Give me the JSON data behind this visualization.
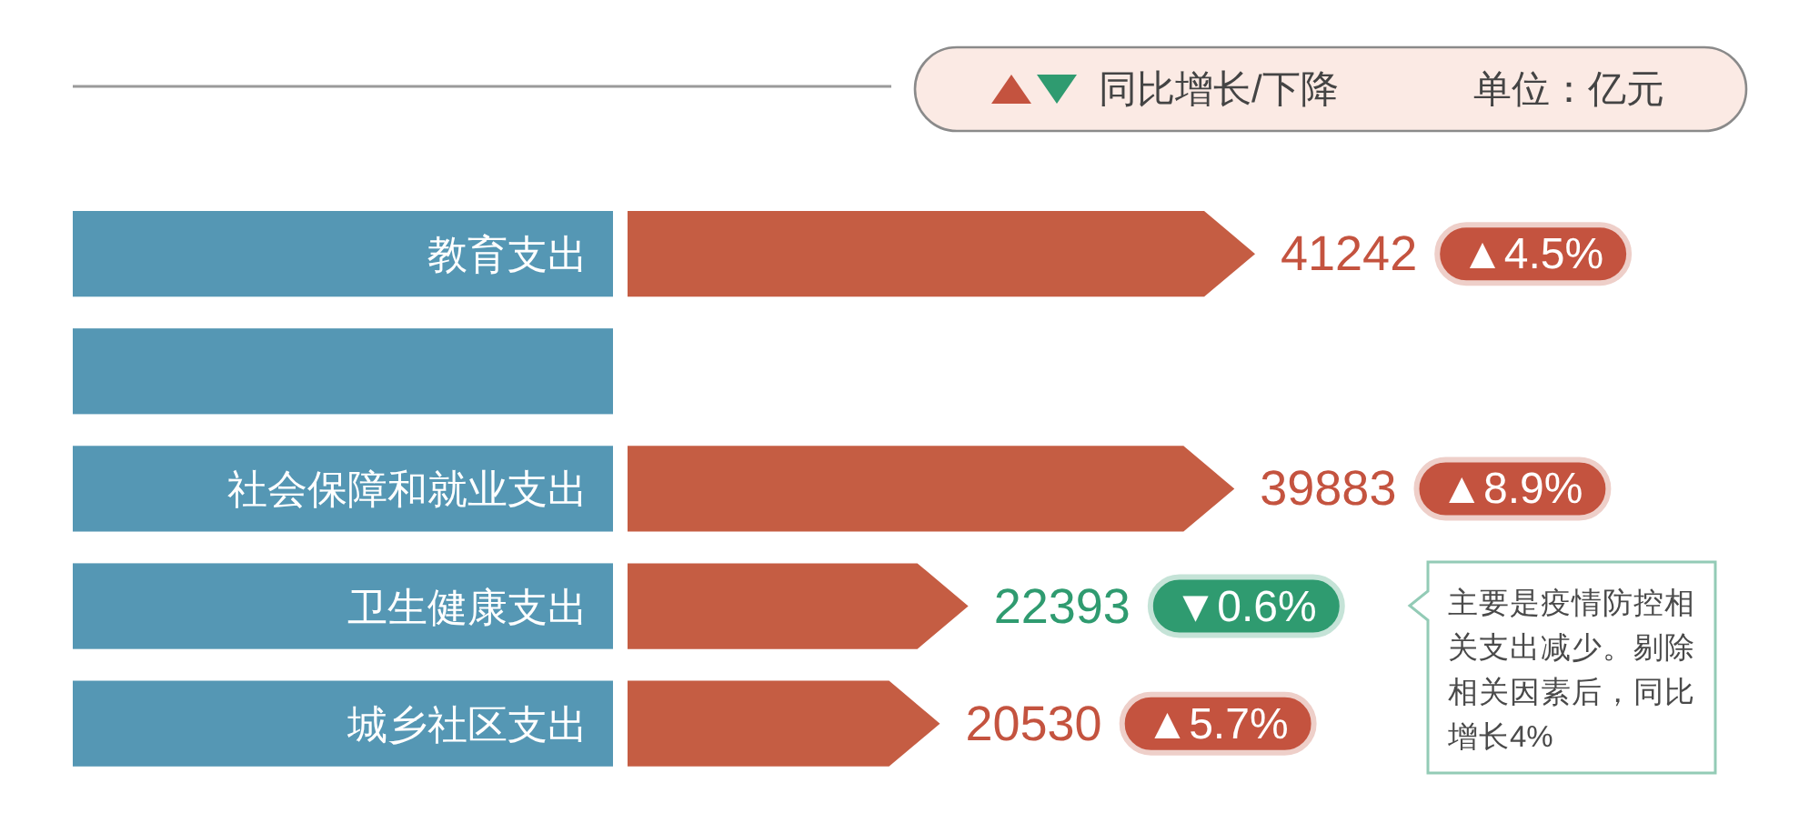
{
  "chart_data": [
    {
      "type": "bar",
      "orientation": "horizontal",
      "categories": [
        "教育支出",
        null,
        "社会保障和就业支出",
        "卫生健康支出",
        "城乡社区支出"
      ],
      "series": [
        {
          "color": "#c55d43",
          "values": [
            41242,
            null,
            39883,
            22393,
            20530
          ]
        }
      ],
      "data_labels": true,
      "annotations": [
        "单位：亿元"
      ]
    },
    {
      "type": "other",
      "series": [
        {
          "name": "同比增长/下降",
          "colors": [
            "#c4533f",
            null,
            "#c4533f",
            "#2f9b70",
            "#c4533f"
          ],
          "values": [
            4.5,
            null,
            8.9,
            0.6,
            5.7
          ],
          "value_labels": [
            "▲4.5%",
            null,
            "▲8.9%",
            "▼0.6%",
            "▲5.7%"
          ]
        }
      ],
      "legend": "top right",
      "annotations": [
        "主要是疫情防控相关支出减少。剔除相关因素后，同比增长4%"
      ]
    }
  ]
}
